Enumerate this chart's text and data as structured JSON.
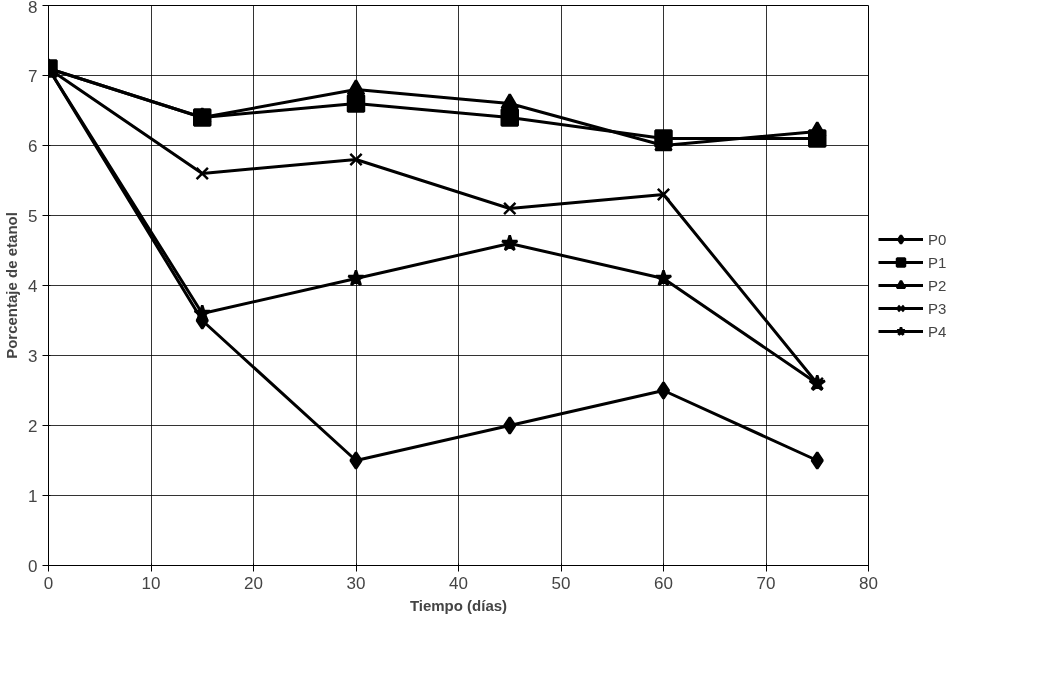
{
  "chart_data": {
    "type": "line",
    "xlabel": "Tiempo (días)",
    "ylabel": "Porcentaje de etanol",
    "x": [
      0,
      15,
      30,
      45,
      60,
      75
    ],
    "xlim": [
      0,
      80
    ],
    "xticks": [
      0,
      10,
      20,
      30,
      40,
      50,
      60,
      70,
      80
    ],
    "ylim": [
      0,
      8
    ],
    "yticks": [
      0,
      1,
      2,
      3,
      4,
      5,
      6,
      7,
      8
    ],
    "grid": true,
    "legend": "right",
    "line_style": "solid",
    "series": [
      {
        "name": "P0",
        "color": "#000000",
        "marker": "diamond",
        "values": [
          7.1,
          3.5,
          1.5,
          2.0,
          2.5,
          1.5
        ]
      },
      {
        "name": "P1",
        "color": "#000000",
        "marker": "square",
        "values": [
          7.1,
          6.4,
          6.6,
          6.4,
          6.1,
          6.1
        ]
      },
      {
        "name": "P2",
        "color": "#000000",
        "marker": "triangle",
        "values": [
          7.1,
          6.4,
          6.8,
          6.6,
          6.0,
          6.2
        ]
      },
      {
        "name": "P3",
        "color": "#000000",
        "marker": "cross",
        "values": [
          7.1,
          5.6,
          5.8,
          5.1,
          5.3,
          2.6
        ]
      },
      {
        "name": "P4",
        "color": "#000000",
        "marker": "star",
        "values": [
          7.1,
          3.6,
          4.1,
          4.6,
          4.1,
          2.6
        ]
      }
    ]
  }
}
